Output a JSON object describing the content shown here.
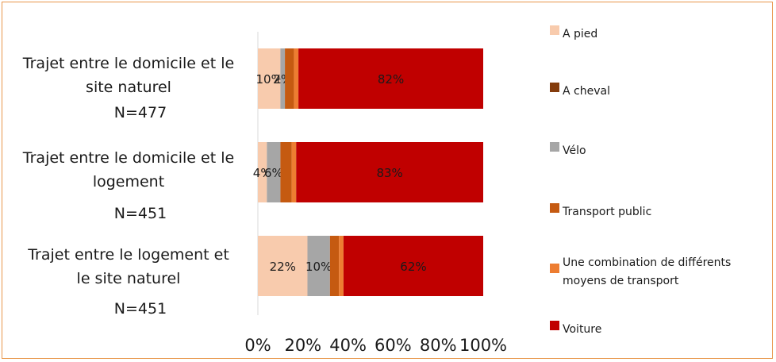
{
  "chart_data": {
    "type": "bar",
    "orientation": "horizontal",
    "stacked": "percent",
    "categories": [
      {
        "lines": [
          "Trajet entre le domicile et le",
          "site naturel"
        ],
        "n": "N=477"
      },
      {
        "lines": [
          "Trajet entre le domicile et le",
          "logement"
        ],
        "n": "N=451"
      },
      {
        "lines": [
          "Trajet entre le logement et",
          "le site naturel"
        ],
        "n": "N=451"
      }
    ],
    "series": [
      {
        "name": "A pied",
        "color": "#f8cbad",
        "values": [
          10,
          4,
          22
        ],
        "labels": [
          "10%",
          "4%",
          "22%"
        ]
      },
      {
        "name": "A cheval",
        "color": "#843c0c",
        "values": [
          0,
          0,
          0
        ],
        "labels": [
          "",
          "",
          ""
        ]
      },
      {
        "name": "Vélo",
        "color": "#a6a6a6",
        "values": [
          2,
          6,
          10
        ],
        "labels": [
          "2%",
          "6%",
          "10%"
        ]
      },
      {
        "name": "Transport public",
        "color": "#c55a11",
        "values": [
          4,
          5,
          4
        ],
        "labels": [
          "",
          "",
          ""
        ]
      },
      {
        "name": [
          "Une combination de différents",
          "moyens de transport"
        ],
        "color": "#ed7d31",
        "values": [
          2,
          2,
          2
        ],
        "labels": [
          "",
          "",
          ""
        ]
      },
      {
        "name": "Voiture",
        "color": "#c00000",
        "values": [
          82,
          83,
          62
        ],
        "labels": [
          "82%",
          "83%",
          "62%"
        ]
      }
    ],
    "xticks": [
      "0%",
      "20%",
      "40%",
      "60%",
      "80%",
      "100%"
    ],
    "xlim": [
      0,
      100
    ],
    "grid": false,
    "legend_position": "right"
  }
}
